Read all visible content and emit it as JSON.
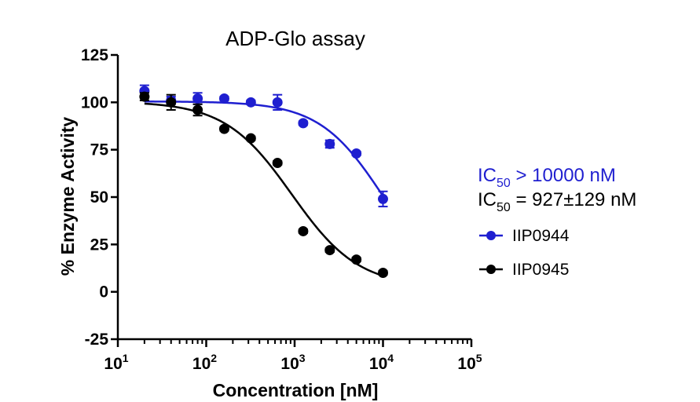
{
  "chart_data": {
    "type": "scatter",
    "title": "ADP-Glo assay",
    "xlabel": "Concentration [nM]",
    "ylabel": "% Enzyme Activity",
    "x_scale": "log",
    "xlim": [
      10,
      100000
    ],
    "ylim": [
      -25,
      125
    ],
    "y_ticks": [
      -25,
      0,
      25,
      50,
      75,
      100,
      125
    ],
    "y_tick_labels": [
      "-25",
      "0",
      "25",
      "50",
      "75",
      "100",
      "125"
    ],
    "x_ticks": [
      {
        "base": "10",
        "exp": "1"
      },
      {
        "base": "10",
        "exp": "2"
      },
      {
        "base": "10",
        "exp": "3"
      },
      {
        "base": "10",
        "exp": "4"
      },
      {
        "base": "10",
        "exp": "5"
      }
    ],
    "x_tick_values": [
      10,
      100,
      1000,
      10000,
      100000
    ],
    "grid": false,
    "legend_position": "right",
    "series": [
      {
        "name": "IIP0944",
        "color": "#1f1fd0",
        "marker": "circle",
        "x": [
          20,
          40,
          80,
          160,
          320,
          640,
          1250,
          2500,
          5000,
          10000
        ],
        "y": [
          106,
          101,
          102,
          102,
          100,
          100,
          89,
          78,
          73,
          49
        ],
        "err": [
          3,
          2,
          3,
          1,
          1,
          4,
          1,
          2,
          1,
          4
        ],
        "fit": {
          "top": 100.5,
          "bottom": 0,
          "ic50": 10100,
          "hill": 1.2,
          "x_end": 10000
        }
      },
      {
        "name": "IIP0945",
        "color": "#000000",
        "marker": "circle",
        "x": [
          20,
          40,
          80,
          160,
          320,
          640,
          1250,
          2500,
          5000,
          10000
        ],
        "y": [
          103,
          100,
          96,
          86,
          81,
          68,
          32,
          22,
          17,
          10
        ],
        "err": [
          2,
          4,
          3,
          1,
          1,
          1,
          1,
          1,
          1,
          1
        ],
        "fit": {
          "top": 100.5,
          "bottom": 2.5,
          "ic50": 927,
          "hill": 1.15,
          "x_end": 10000
        }
      }
    ],
    "annotations": [
      {
        "prefix": "IC",
        "sub": "50",
        "suffix": " > 10000 nM",
        "color": "#1f1fd0"
      },
      {
        "prefix": "IC",
        "sub": "50",
        "suffix": " = 927±129 nM",
        "color": "#000000"
      }
    ]
  }
}
